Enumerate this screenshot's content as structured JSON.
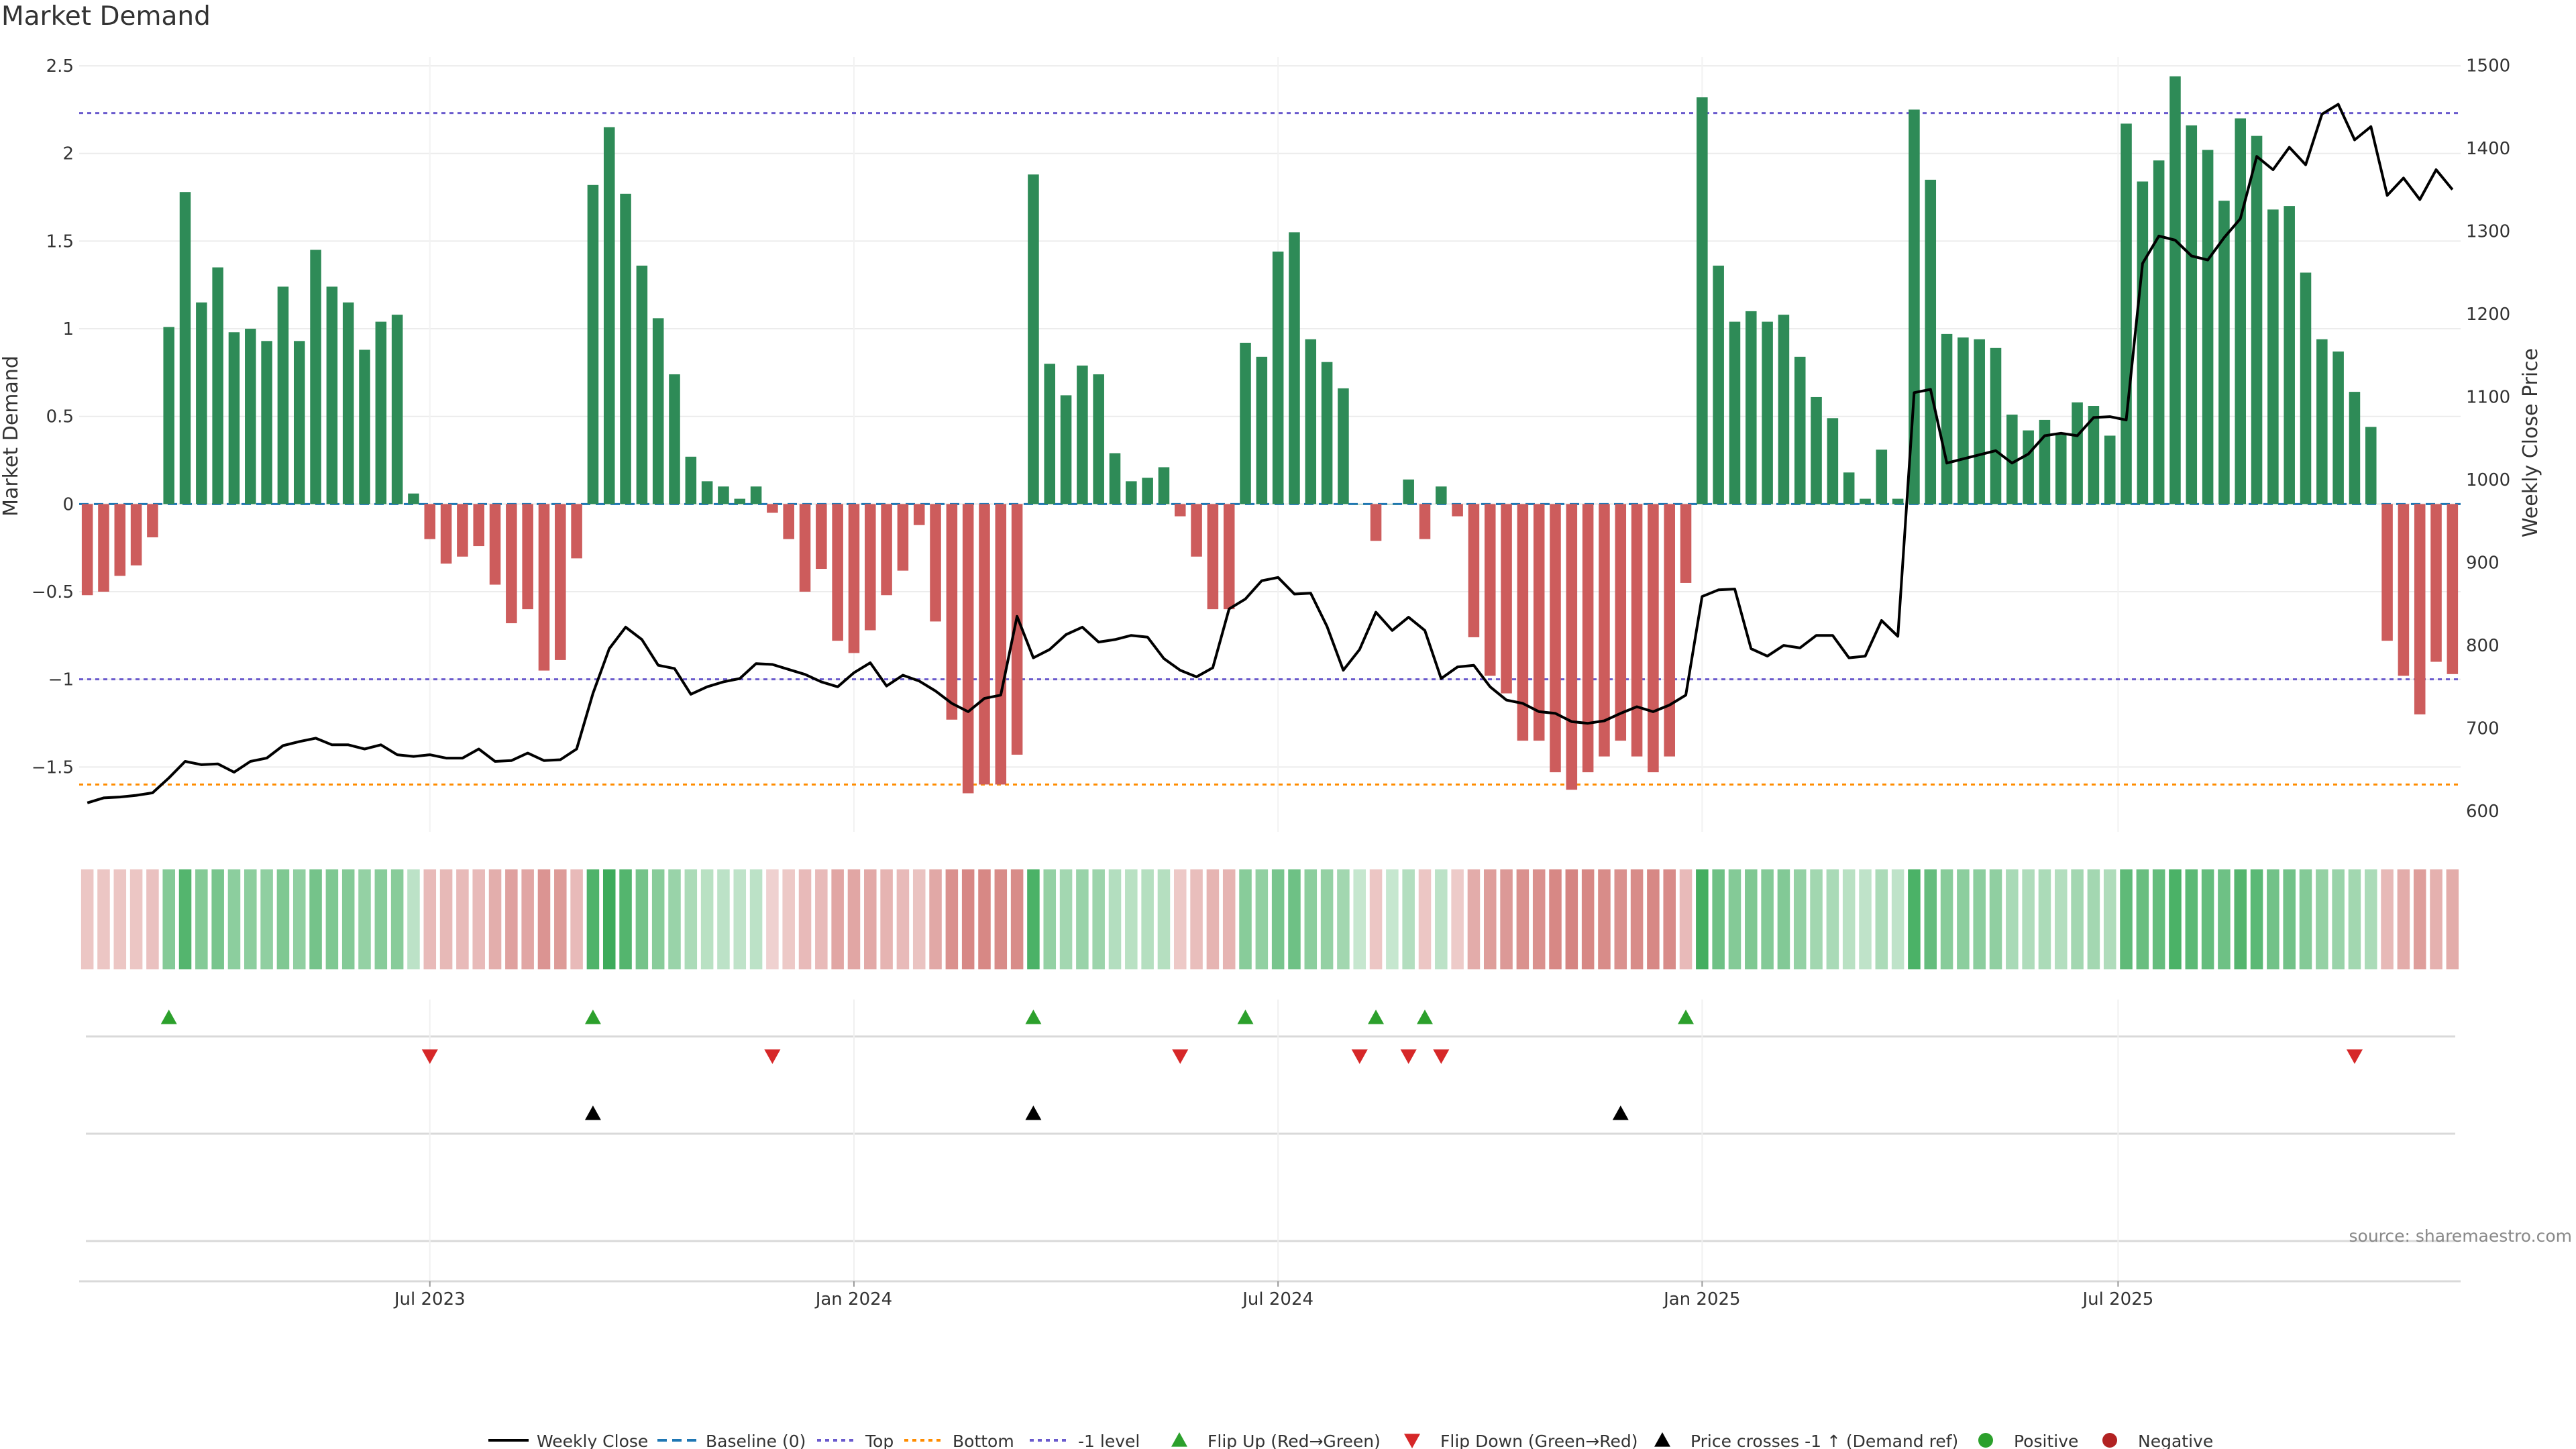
{
  "chart_data": {
    "type": "bar",
    "title": "Market Demand",
    "ylabel": "Market Demand",
    "y2label": "Weekly Close Price",
    "ylim": [
      -1.87,
      2.55
    ],
    "y2lim": [
      575,
      1510
    ],
    "yticks": [
      "−1.5",
      "−1",
      "−0.5",
      "0",
      "0.5",
      "1",
      "1.5",
      "2",
      "2.5"
    ],
    "ytick_values": [
      -1.5,
      -1,
      -0.5,
      0,
      0.5,
      1,
      1.5,
      2,
      2.5
    ],
    "y2ticks": [
      "600",
      "700",
      "800",
      "900",
      "1000",
      "1100",
      "1200",
      "1300",
      "1400",
      "1500"
    ],
    "y2tick_values": [
      600,
      700,
      800,
      900,
      1000,
      1100,
      1200,
      1300,
      1400,
      1500
    ],
    "xticks": [
      "Jul 2023",
      "Jan 2024",
      "Jul 2024",
      "Jan 2025",
      "Jul 2025"
    ],
    "xtick_index": [
      21.5,
      47.5,
      73.5,
      99.5,
      125
    ],
    "top_level": 2.23,
    "bottom_level": -1.6,
    "minus1_level": -1,
    "demand": [
      -0.52,
      -0.5,
      -0.41,
      -0.35,
      -0.19,
      1.01,
      1.78,
      1.15,
      1.35,
      0.98,
      1.0,
      0.93,
      1.24,
      0.93,
      1.45,
      1.24,
      1.15,
      0.88,
      1.04,
      1.08,
      0.06,
      -0.2,
      -0.34,
      -0.3,
      -0.24,
      -0.46,
      -0.68,
      -0.6,
      -0.95,
      -0.89,
      -0.31,
      1.82,
      2.15,
      1.77,
      1.36,
      1.06,
      0.74,
      0.27,
      0.13,
      0.1,
      0.03,
      0.1,
      -0.05,
      -0.2,
      -0.5,
      -0.37,
      -0.78,
      -0.85,
      -0.72,
      -0.52,
      -0.38,
      -0.12,
      -0.67,
      -1.23,
      -1.65,
      -1.6,
      -1.6,
      -1.43,
      1.88,
      0.8,
      0.62,
      0.79,
      0.74,
      0.29,
      0.13,
      0.15,
      0.21,
      -0.07,
      -0.3,
      -0.6,
      -0.6,
      0.92,
      0.84,
      1.44,
      1.55,
      0.94,
      0.81,
      0.66,
      0.0,
      -0.21,
      0.0,
      0.14,
      -0.2,
      0.1,
      -0.07,
      -0.76,
      -0.98,
      -1.08,
      -1.35,
      -1.35,
      -1.53,
      -1.63,
      -1.53,
      -1.44,
      -1.35,
      -1.44,
      -1.53,
      -1.44,
      -0.45,
      2.32,
      1.36,
      1.04,
      1.1,
      1.04,
      1.08,
      0.84,
      0.61,
      0.49,
      0.18,
      0.03,
      0.31,
      0.03,
      2.25,
      1.85,
      0.97,
      0.95,
      0.94,
      0.89,
      0.51,
      0.42,
      0.48,
      0.4,
      0.58,
      0.56,
      0.39,
      2.17,
      1.84,
      1.96,
      2.44,
      2.16,
      2.02,
      1.73,
      2.2,
      2.1,
      1.68,
      1.7,
      1.32,
      0.94,
      0.87,
      0.64,
      0.44,
      -0.78,
      -0.98,
      -1.2,
      -0.9,
      -0.97
    ],
    "price": [
      610,
      616,
      617,
      619,
      622,
      640,
      660,
      656,
      657,
      647,
      660,
      664,
      679,
      684,
      688,
      680,
      680,
      675,
      680,
      668,
      666,
      668,
      664,
      664,
      675,
      660,
      661,
      670,
      661,
      662,
      675,
      742,
      796,
      822,
      807,
      776,
      772,
      741,
      750,
      756,
      760,
      778,
      777,
      771,
      765,
      756,
      750,
      767,
      779,
      751,
      764,
      757,
      745,
      730,
      720,
      736,
      740,
      835,
      785,
      795,
      813,
      822,
      804,
      807,
      812,
      810,
      784,
      770,
      762,
      773,
      844,
      856,
      878,
      882,
      862,
      863,
      823,
      770,
      795,
      840,
      818,
      834,
      818,
      760,
      774,
      776,
      750,
      734,
      730,
      720,
      718,
      708,
      706,
      709,
      718,
      726,
      720,
      728,
      740,
      859,
      867,
      868,
      796,
      787,
      800,
      797,
      812,
      812,
      785,
      787,
      830,
      811,
      1105,
      1109,
      1020,
      1025,
      1030,
      1035,
      1020,
      1031,
      1053,
      1056,
      1053,
      1075,
      1076,
      1072,
      1261,
      1294,
      1289,
      1270,
      1265,
      1292,
      1315,
      1390,
      1374,
      1401,
      1380,
      1441,
      1453,
      1410,
      1426,
      1343,
      1364,
      1338,
      1374,
      1350
    ],
    "heat": [
      0.22,
      0.22,
      0.22,
      0.22,
      0.26,
      0.55,
      0.85,
      0.55,
      0.62,
      0.5,
      0.5,
      0.48,
      0.58,
      0.48,
      0.65,
      0.58,
      0.55,
      0.45,
      0.52,
      0.52,
      0.2,
      0.3,
      0.32,
      0.3,
      0.3,
      0.4,
      0.5,
      0.46,
      0.6,
      0.55,
      0.3,
      0.88,
      1.0,
      0.85,
      0.65,
      0.52,
      0.42,
      0.3,
      0.22,
      0.2,
      0.18,
      0.2,
      0.14,
      0.2,
      0.3,
      0.3,
      0.46,
      0.46,
      0.44,
      0.35,
      0.3,
      0.24,
      0.45,
      0.62,
      0.7,
      0.7,
      0.66,
      0.66,
      0.9,
      0.45,
      0.35,
      0.42,
      0.4,
      0.26,
      0.22,
      0.24,
      0.24,
      0.2,
      0.28,
      0.35,
      0.35,
      0.52,
      0.46,
      0.62,
      0.68,
      0.5,
      0.45,
      0.36,
      0.14,
      0.22,
      0.14,
      0.25,
      0.22,
      0.2,
      0.18,
      0.42,
      0.52,
      0.56,
      0.62,
      0.62,
      0.7,
      0.72,
      0.7,
      0.66,
      0.62,
      0.66,
      0.7,
      0.66,
      0.3,
      0.95,
      0.68,
      0.55,
      0.58,
      0.55,
      0.56,
      0.45,
      0.36,
      0.32,
      0.22,
      0.18,
      0.3,
      0.18,
      0.9,
      0.75,
      0.52,
      0.5,
      0.5,
      0.48,
      0.32,
      0.28,
      0.3,
      0.26,
      0.35,
      0.35,
      0.28,
      0.78,
      0.72,
      0.75,
      0.9,
      0.8,
      0.75,
      0.68,
      0.85,
      0.8,
      0.66,
      0.66,
      0.55,
      0.45,
      0.42,
      0.36,
      0.3,
      0.32,
      0.42,
      0.52,
      0.38,
      0.42
    ],
    "flip_up": [
      5,
      31,
      58,
      71,
      79,
      82,
      98
    ],
    "flip_down": [
      21,
      42,
      67,
      78,
      81,
      83,
      139
    ],
    "price_cross": [
      31,
      58,
      94
    ],
    "series": [
      {
        "name": "Weekly Close"
      },
      {
        "name": "Baseline (0)"
      },
      {
        "name": "Top"
      },
      {
        "name": "Bottom"
      },
      {
        "name": "-1 level"
      },
      {
        "name": "Flip Up (Red→Green)"
      },
      {
        "name": "Flip Down (Green→Red)"
      },
      {
        "name": "Price crosses -1 ↑ (Demand ref)"
      },
      {
        "name": "Positive"
      },
      {
        "name": "Negative"
      }
    ],
    "grid": true,
    "legend": "bottom-center"
  },
  "source": "source: sharemaestro.com",
  "colors": {
    "positive": "#2e8b57",
    "negative": "#cd5c5c",
    "heat_pos": "#3cab5a",
    "heat_neg": "#c9605c",
    "price": "#000000",
    "baseline": "#1f77b4",
    "top": "#6a5acd",
    "bottom": "#ff8c00",
    "minus1": "#6a5acd",
    "flip_up": "#2ca02c",
    "flip_down": "#d62728",
    "cross": "#000000",
    "legend_pos": "#2ca02c",
    "legend_neg": "#b22222"
  }
}
